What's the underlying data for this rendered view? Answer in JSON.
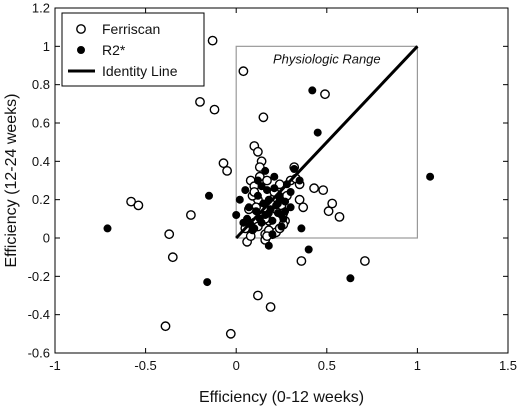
{
  "chart_data": {
    "type": "scatter",
    "xlabel": "Efficiency (0-12 weeks)",
    "ylabel": "Efficiency (12-24 weeks)",
    "xlim": [
      -1,
      1.5
    ],
    "ylim": [
      -0.6,
      1.2
    ],
    "x_ticks": [
      -1,
      -0.5,
      0,
      0.5,
      1,
      1.5
    ],
    "x_tick_labels": [
      "-1",
      "-0.5",
      "0",
      "0.5",
      "1",
      "1.5"
    ],
    "y_ticks": [
      -0.6,
      -0.4,
      -0.2,
      0,
      0.2,
      0.4,
      0.6,
      0.8,
      1,
      1.2
    ],
    "y_tick_labels": [
      "-0.6",
      "-0.4",
      "-0.2",
      "0",
      "0.2",
      "0.4",
      "0.6",
      "0.8",
      "1",
      "1.2"
    ],
    "grid": false,
    "legend": {
      "position": "top-left",
      "entries": [
        "Ferriscan",
        "R2*",
        "Identity Line"
      ]
    },
    "annotation": {
      "text": "Physiologic Range",
      "box": {
        "x": [
          0,
          1
        ],
        "y": [
          0,
          1
        ]
      }
    },
    "series": [
      {
        "name": "Ferriscan",
        "marker": "open-circle",
        "x": [
          -0.13,
          -0.2,
          -0.12,
          -0.05,
          -0.07,
          0.04,
          -0.58,
          -0.54,
          -0.25,
          -0.37,
          -0.35,
          -0.39,
          -0.03,
          0.12,
          0.19,
          0.16,
          0.1,
          0.12,
          0.14,
          0.08,
          0.1,
          0.13,
          0.17,
          0.2,
          0.22,
          0.24,
          0.26,
          0.3,
          0.32,
          0.35,
          0.37,
          0.43,
          0.48,
          0.49,
          0.51,
          0.53,
          0.57,
          0.05,
          0.1,
          0.12,
          0.14,
          0.16,
          0.18,
          0.2,
          0.22,
          0.25,
          0.28,
          0.19,
          0.15,
          0.13,
          0.11,
          0.09,
          0.07,
          0.06,
          0.08,
          0.12,
          0.15,
          0.18,
          0.27,
          0.33,
          0.35,
          0.26,
          0.24,
          0.21,
          0.17,
          0.14,
          0.36,
          0.71,
          0.26,
          0.16,
          0.1
        ],
        "y": [
          1.03,
          0.71,
          0.67,
          0.35,
          0.39,
          0.87,
          0.19,
          0.17,
          0.12,
          0.02,
          -0.1,
          -0.46,
          -0.5,
          -0.3,
          -0.36,
          -0.01,
          0.48,
          0.45,
          0.4,
          0.3,
          0.27,
          0.32,
          0.3,
          0.2,
          0.15,
          0.28,
          0.2,
          0.3,
          0.37,
          0.2,
          0.16,
          0.26,
          0.25,
          0.75,
          0.14,
          0.18,
          0.11,
          0.05,
          0.08,
          0.2,
          0.12,
          0.02,
          0.09,
          0.02,
          0.03,
          0.17,
          0.22,
          0.18,
          0.63,
          0.37,
          0.16,
          0.22,
          0.15,
          -0.02,
          0.01,
          0.06,
          0.1,
          0.04,
          0.09,
          0.31,
          0.28,
          0.13,
          0.05,
          0.24,
          0.01,
          0.11,
          -0.12,
          -0.12,
          0.07,
          0.1,
          0.24
        ]
      },
      {
        "name": "R2*",
        "marker": "filled-circle",
        "x": [
          -0.71,
          -0.16,
          -0.15,
          0.42,
          0.45,
          0.63,
          1.07,
          0.0,
          0.02,
          0.04,
          0.05,
          0.07,
          0.08,
          0.1,
          0.11,
          0.12,
          0.13,
          0.14,
          0.15,
          0.16,
          0.17,
          0.18,
          0.19,
          0.2,
          0.21,
          0.22,
          0.23,
          0.24,
          0.25,
          0.26,
          0.27,
          0.28,
          0.3,
          0.32,
          0.35,
          0.18,
          0.2,
          0.25,
          0.3,
          0.36,
          0.4,
          0.12,
          0.14,
          0.16,
          0.06,
          0.09,
          0.27,
          0.23,
          0.18,
          0.21,
          0.24
        ],
        "y": [
          0.05,
          -0.23,
          0.22,
          0.77,
          0.55,
          -0.21,
          0.32,
          0.12,
          0.2,
          0.08,
          0.25,
          0.16,
          0.07,
          0.05,
          0.14,
          0.22,
          0.1,
          0.08,
          0.18,
          0.12,
          0.25,
          0.2,
          0.15,
          0.09,
          0.32,
          0.17,
          0.13,
          0.22,
          0.06,
          0.1,
          0.19,
          0.28,
          0.24,
          0.36,
          0.3,
          -0.04,
          0.02,
          0.12,
          0.16,
          0.05,
          -0.06,
          0.3,
          0.27,
          0.35,
          0.1,
          0.04,
          0.14,
          0.18,
          0.13,
          0.26,
          0.21
        ]
      }
    ],
    "identity_line": {
      "name": "Identity Line",
      "x": [
        0,
        1
      ],
      "y": [
        0,
        1
      ]
    }
  }
}
